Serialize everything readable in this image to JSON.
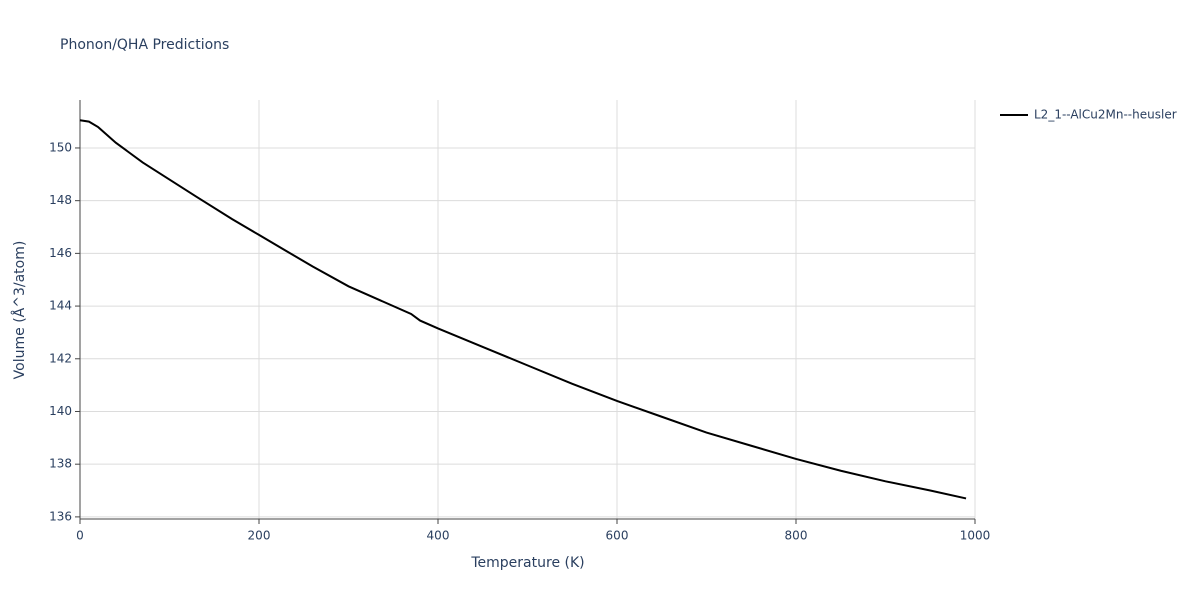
{
  "chart_data": {
    "type": "line",
    "title": "Phonon/QHA Predictions",
    "x_label": "Temperature (K)",
    "y_label": "Volume (Å^3/atom)",
    "x": [
      0,
      10,
      20,
      40,
      70,
      100,
      130,
      170,
      200,
      230,
      260,
      300,
      340,
      370,
      380,
      400,
      450,
      500,
      550,
      600,
      650,
      700,
      750,
      800,
      850,
      900,
      950,
      990
    ],
    "series": [
      {
        "name": "L2_1--AlCu2Mn--heusler",
        "color": "#000000",
        "values": [
          151.05,
          151.0,
          150.8,
          150.2,
          149.45,
          148.8,
          148.15,
          147.3,
          146.7,
          146.1,
          145.5,
          144.75,
          144.15,
          143.7,
          143.45,
          143.15,
          142.45,
          141.75,
          141.05,
          140.4,
          139.8,
          139.2,
          138.7,
          138.2,
          137.75,
          137.35,
          137.0,
          136.7
        ]
      }
    ],
    "xlim": [
      0,
      1000
    ],
    "xticks": [
      0,
      200,
      400,
      600,
      800,
      1000
    ],
    "ylim": [
      135.92,
      151.82
    ],
    "yticks": [
      136,
      138,
      140,
      142,
      144,
      146,
      148,
      150
    ],
    "grid": true,
    "legend": "right"
  }
}
